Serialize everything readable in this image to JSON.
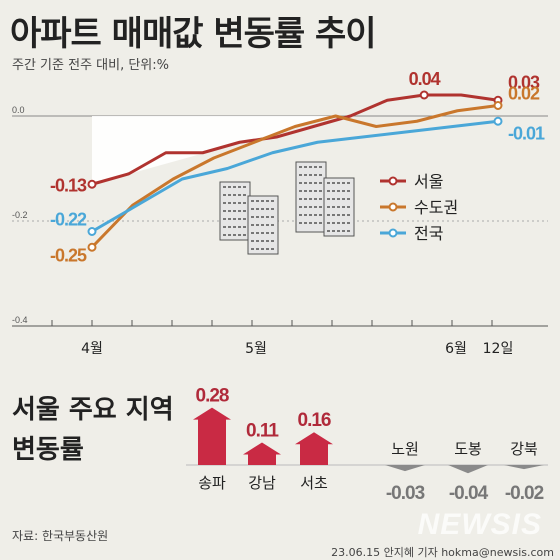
{
  "title": "아파트 매매값 변동률 추이",
  "subtitle": "주간 기준 전주 대비, 단위:%",
  "source": "자료: 한국부동산원",
  "byline": "23.06.15 안지혜 기자 hokma@newsis.com",
  "watermark": "NEWSIS",
  "colors": {
    "seoul": "#b0332f",
    "capital": "#c9772c",
    "national": "#4aa7d8",
    "bar_up": "#c92a44",
    "bar_down": "#8a8a8a",
    "background": "#efeee8"
  },
  "chart_data": [
    {
      "type": "line",
      "title": "아파트 매매값 변동률 추이",
      "subtitle": "주간 기준 전주 대비, 단위:%",
      "x_labels": [
        "4월",
        "5월",
        "6월",
        "12일"
      ],
      "ylim": [
        -0.4,
        0.05
      ],
      "y_ticks": [
        "0.0",
        "-0.2",
        "-0.4"
      ],
      "series": [
        {
          "name": "서울",
          "color_key": "seoul",
          "values": [
            -0.13,
            -0.11,
            -0.07,
            -0.07,
            -0.05,
            -0.04,
            -0.02,
            0.0,
            0.03,
            0.04,
            0.04,
            0.03
          ],
          "start_label": "-0.13",
          "end_label": "0.03",
          "peak_label": "0.04"
        },
        {
          "name": "수도권",
          "color_key": "capital",
          "values": [
            -0.25,
            -0.17,
            -0.12,
            -0.08,
            -0.05,
            -0.02,
            0.0,
            -0.02,
            -0.01,
            0.01,
            0.02
          ],
          "start_label": "-0.25",
          "end_label": "0.02"
        },
        {
          "name": "전국",
          "color_key": "national",
          "values": [
            -0.22,
            -0.17,
            -0.12,
            -0.1,
            -0.07,
            -0.05,
            -0.04,
            -0.03,
            -0.02,
            -0.01
          ],
          "start_label": "-0.22",
          "end_label": "-0.01"
        }
      ]
    },
    {
      "type": "bar",
      "title": "서울 주요 지역 변동률",
      "categories": [
        "송파",
        "강남",
        "서초",
        "노원",
        "도봉",
        "강북"
      ],
      "values": [
        0.28,
        0.11,
        0.16,
        -0.03,
        -0.04,
        -0.02
      ],
      "value_labels": [
        "0.28",
        "0.11",
        "0.16",
        "-0.03",
        "-0.04",
        "-0.02"
      ]
    }
  ]
}
